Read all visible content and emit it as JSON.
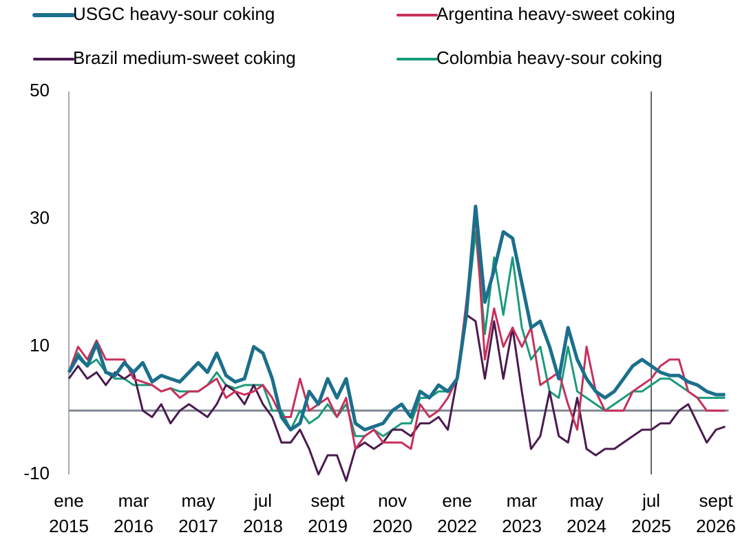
{
  "chart_data": {
    "type": "line",
    "categories": [
      "ene 2015",
      null,
      null,
      null,
      null,
      null,
      null,
      "mar 2016",
      null,
      null,
      null,
      null,
      null,
      null,
      "may 2017",
      null,
      null,
      null,
      null,
      null,
      null,
      "jul 2018",
      null,
      null,
      null,
      null,
      null,
      null,
      "sept 2019",
      null,
      null,
      null,
      null,
      null,
      null,
      "nov 2020",
      null,
      null,
      null,
      null,
      null,
      null,
      "ene 2022",
      null,
      null,
      null,
      null,
      null,
      null,
      "mar 2023",
      null,
      null,
      null,
      null,
      null,
      null,
      "may 2024",
      null,
      null,
      null,
      null,
      null,
      null,
      "jul 2025",
      null,
      null,
      null,
      null,
      null,
      null,
      "sept 2026",
      null
    ],
    "series": [
      {
        "name": "USGC heavy-sour coking",
        "color": "#1b6f8c",
        "line_width": 5,
        "values": [
          6,
          8.5,
          7,
          10.5,
          6,
          5.5,
          7.5,
          6,
          7.5,
          4.5,
          5.5,
          5,
          4.5,
          6,
          7.5,
          6,
          9,
          5.5,
          4.5,
          5,
          10,
          9,
          5,
          -1,
          -3,
          -2,
          3,
          1,
          5,
          2,
          5,
          -2,
          -3,
          -2.5,
          -2,
          0,
          1,
          -1,
          3,
          2,
          4,
          3,
          5,
          15,
          32,
          17,
          22,
          28,
          27,
          20,
          13,
          14,
          10,
          5,
          13,
          8,
          5,
          3,
          2,
          3,
          5,
          7,
          8,
          7,
          6,
          5.5,
          5.5,
          4.5,
          4,
          3,
          2.5,
          2.5
        ]
      },
      {
        "name": "Argentina heavy-sweet coking",
        "color": "#c8305a",
        "line_width": 3,
        "values": [
          6,
          10,
          8,
          11,
          8,
          8,
          8,
          5,
          4.5,
          4,
          3,
          3.5,
          2,
          3,
          3,
          4,
          5,
          2,
          3,
          2.5,
          3,
          4,
          2,
          -1,
          -1,
          5,
          0,
          1,
          2,
          -1,
          2,
          -6,
          -4,
          -3,
          -5,
          -5,
          -5,
          -6,
          1,
          -1,
          0,
          2,
          5,
          17,
          31,
          8,
          16,
          10,
          13,
          10,
          13,
          4,
          5,
          6,
          1,
          -3,
          10,
          3,
          0,
          0,
          0,
          3,
          4,
          5,
          7,
          8,
          8,
          3,
          2,
          0,
          0,
          0
        ]
      },
      {
        "name": "Brazil medium-sweet coking",
        "color": "#4a1a4f",
        "line_width": 3,
        "values": [
          5,
          7,
          5,
          6,
          4,
          6,
          5,
          6,
          0,
          -1,
          1,
          -2,
          0,
          1,
          0,
          -1,
          1,
          4,
          3,
          1,
          4,
          1,
          -1,
          -5,
          -5,
          -3,
          -6,
          -10,
          -7,
          -7,
          -11,
          -6,
          -5,
          -6,
          -5,
          -3,
          -3,
          -4,
          -2,
          -2,
          -1,
          -3,
          5,
          15,
          14,
          5,
          14,
          5,
          13,
          3,
          -6,
          -4,
          3,
          -4,
          -5,
          2,
          -6,
          -7,
          -6,
          -6,
          -5,
          -4,
          -3,
          -3,
          -2,
          -2,
          0,
          1,
          -2,
          -5,
          -3,
          -2.5
        ]
      },
      {
        "name": "Colombia heavy-sour coking",
        "color": "#1a9a7a",
        "line_width": 3,
        "values": [
          6,
          9,
          7,
          8,
          6,
          5,
          5,
          4,
          4,
          4,
          3,
          3.5,
          3,
          3,
          3,
          4,
          6,
          4,
          3.5,
          4,
          4,
          4,
          0,
          0,
          -3,
          0,
          -2,
          -1,
          1,
          -1,
          1,
          -4,
          -4,
          -3,
          -4,
          -3,
          -2,
          -2,
          2,
          2,
          3,
          3,
          5,
          15,
          28,
          12,
          24,
          15,
          24,
          13,
          8,
          10,
          3,
          2,
          10,
          3,
          2,
          1,
          0,
          1,
          2,
          3,
          3,
          4,
          5,
          5,
          4,
          3,
          2,
          2,
          2,
          2
        ]
      }
    ],
    "ylim": [
      -10,
      50
    ],
    "yticks": [
      -10,
      10,
      30,
      50
    ],
    "y_reference": 0,
    "x_reference": 63,
    "grid": false
  }
}
